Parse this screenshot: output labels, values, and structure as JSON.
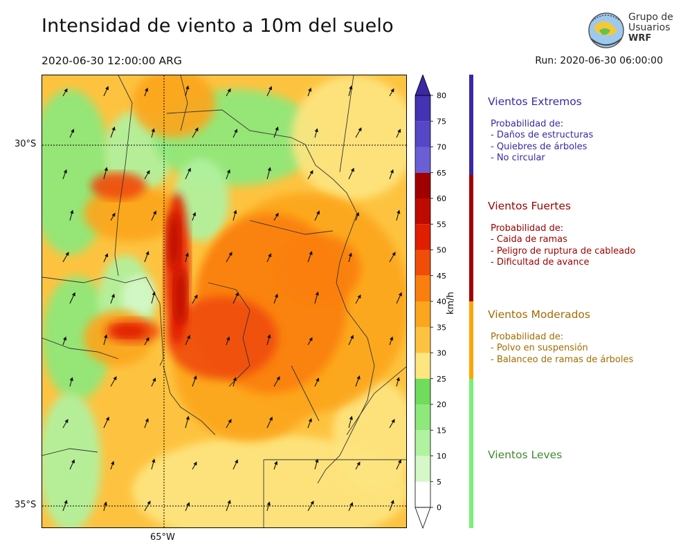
{
  "header": {
    "title": "Intensidad de viento a 10m del suelo",
    "valid_time": "2020-06-30 12:00:00 ARG",
    "run_time": "Run: 2020-06-30 06:00:00"
  },
  "logo": {
    "line1": "Grupo de",
    "line2": "Usuarios",
    "line3": "WRF"
  },
  "map": {
    "lat_labels": [
      "30°S",
      "35°S"
    ],
    "lon_labels": [
      "65°W"
    ],
    "wind_vector_direction": "northeast"
  },
  "colorbar": {
    "unit": "km/h",
    "ticks": [
      "0",
      "5",
      "10",
      "15",
      "20",
      "25",
      "30",
      "35",
      "40",
      "45",
      "50",
      "55",
      "60",
      "65",
      "70",
      "75",
      "80"
    ],
    "colors": [
      "#ffffff",
      "#d4f8c8",
      "#b0f2a0",
      "#8ee87c",
      "#6fdc5c",
      "#fde580",
      "#fdc340",
      "#fca61e",
      "#fa7f0f",
      "#f04e08",
      "#e01e00",
      "#bf0a00",
      "#a00000",
      "#6b5fd6",
      "#5547c6",
      "#4433b2"
    ],
    "extend_max_color": "#3b27a6"
  },
  "legend": [
    {
      "title": "Vientos Extremos",
      "color": "#3b27a6",
      "bar_color": "#3b27a6",
      "lines": [
        "Probabilidad de:",
        "- Daños de estructuras",
        "- Quiebres de árboles",
        "- No circular"
      ]
    },
    {
      "title": "Vientos Fuertes",
      "color": "#9a0000",
      "bar_color": "#a00000",
      "lines": [
        "Probabilidad de:",
        "- Caida de ramas",
        "- Peligro de ruptura de cableado",
        "- Dificultad de avance"
      ]
    },
    {
      "title": "Vientos Moderados",
      "color": "#a46b00",
      "bar_color": "#ffa500",
      "lines": [
        "Probabilidad de:",
        "- Polvo en suspensión",
        "- Balanceo de ramas de árboles"
      ]
    },
    {
      "title": "Vientos Leves",
      "color": "#3f8a2e",
      "bar_color": "#77f077",
      "lines": []
    }
  ]
}
